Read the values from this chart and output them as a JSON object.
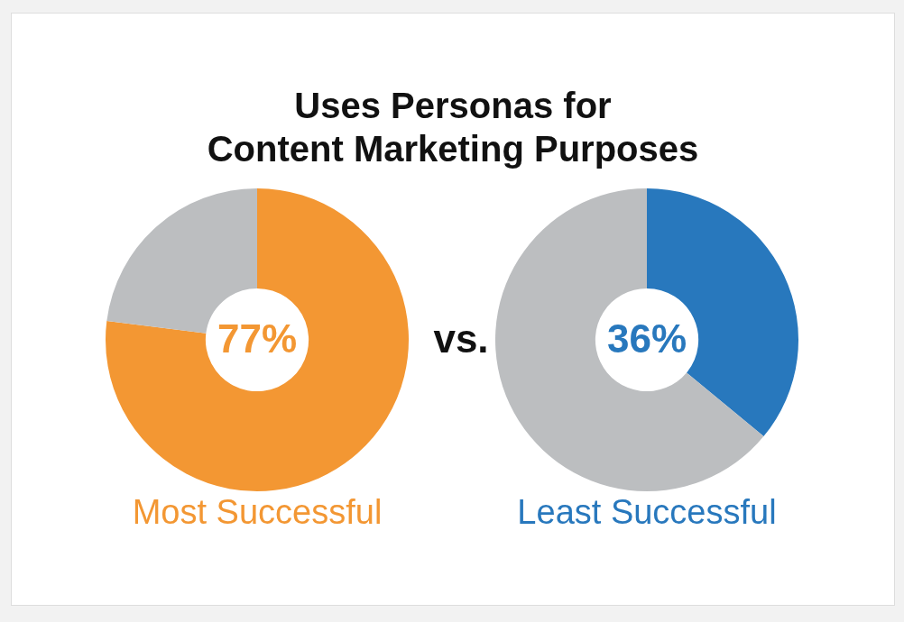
{
  "chart_data": [
    {
      "type": "donut",
      "title": "Uses Personas for\nContent Marketing Purposes",
      "categories": [
        null,
        null
      ],
      "values": [
        77,
        23
      ],
      "colors": [
        "#f39733",
        "#bcbec0"
      ],
      "value_labels": [
        "77%",
        null
      ],
      "xlabel": "Most Successful",
      "annotations": [
        "vs."
      ]
    },
    {
      "type": "donut",
      "categories": [
        null,
        null
      ],
      "values": [
        36,
        64
      ],
      "colors": [
        "#2878bd",
        "#bcbec0"
      ],
      "value_labels": [
        "36%",
        null
      ],
      "xlabel": "Least Successful"
    }
  ]
}
